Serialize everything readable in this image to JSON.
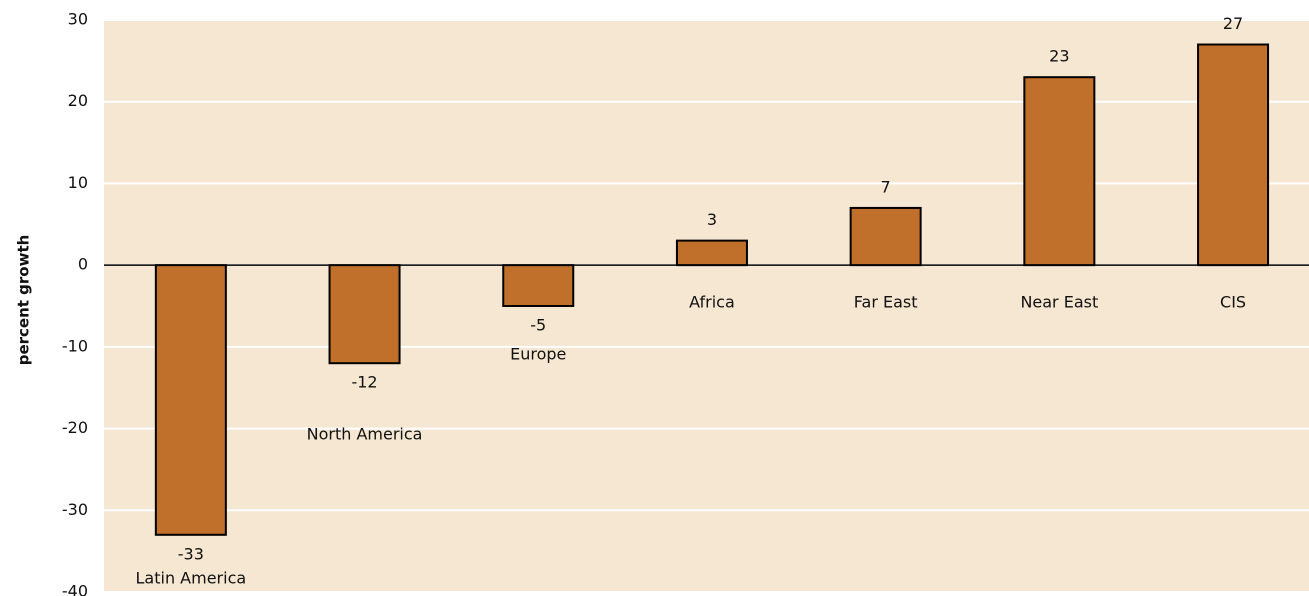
{
  "chart_data": {
    "type": "bar",
    "y_label": "percent growth",
    "categories": [
      "Latin America",
      "North America",
      "Europe",
      "Africa",
      "Far East",
      "Near East",
      "CIS"
    ],
    "values": [
      -33,
      -12,
      -5,
      3,
      7,
      23,
      27
    ],
    "color": "#c1702b",
    "ylim": [
      -40,
      30
    ],
    "yticks": [
      -40,
      -30,
      -20,
      -10,
      0,
      10,
      20,
      30
    ],
    "grid": true
  }
}
